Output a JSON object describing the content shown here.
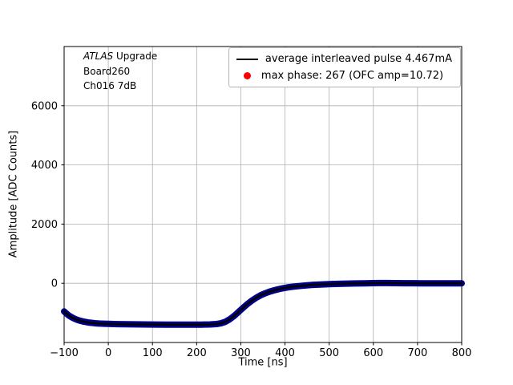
{
  "annotation": {
    "line1_italic": "ATLAS",
    "line1_rest": " Upgrade",
    "line2": "Board260",
    "line3": "Ch016 7dB"
  },
  "chart_data": {
    "type": "line",
    "title": "",
    "xlabel": "Time [ns]",
    "ylabel": "Amplitude [ADC Counts]",
    "xlim": [
      -100,
      800
    ],
    "ylim": [
      -2000,
      8000
    ],
    "xticks": [
      -100,
      0,
      100,
      200,
      300,
      400,
      500,
      600,
      700,
      800
    ],
    "xtick_labels": [
      "−100",
      "0",
      "100",
      "200",
      "300",
      "400",
      "500",
      "600",
      "700",
      "800"
    ],
    "yticks": [
      0,
      2000,
      4000,
      6000
    ],
    "ytick_labels": [
      "0",
      "2000",
      "4000",
      "6000"
    ],
    "grid": true,
    "grid_color": "#b0b0b0",
    "axes_edge_color": "#000000",
    "legend": {
      "position": "upper right",
      "entries": [
        {
          "label": "average interleaved pulse 4.467mA",
          "marker": "line",
          "color": "#000000"
        },
        {
          "label": "max phase: 267 (OFC amp=10.72)",
          "marker": "dot",
          "color": "#ff0000"
        }
      ]
    },
    "pulse_points": [
      [
        -100,
        -950
      ],
      [
        -95,
        -1020
      ],
      [
        -90,
        -1080
      ],
      [
        -85,
        -1130
      ],
      [
        -80,
        -1170
      ],
      [
        -75,
        -1205
      ],
      [
        -70,
        -1235
      ],
      [
        -65,
        -1260
      ],
      [
        -60,
        -1280
      ],
      [
        -55,
        -1298
      ],
      [
        -50,
        -1312
      ],
      [
        -45,
        -1324
      ],
      [
        -40,
        -1334
      ],
      [
        -35,
        -1342
      ],
      [
        -30,
        -1349
      ],
      [
        -25,
        -1355
      ],
      [
        -20,
        -1360
      ],
      [
        -10,
        -1367
      ],
      [
        0,
        -1372
      ],
      [
        20,
        -1379
      ],
      [
        40,
        -1384
      ],
      [
        60,
        -1388
      ],
      [
        80,
        -1391
      ],
      [
        100,
        -1393
      ],
      [
        130,
        -1395
      ],
      [
        160,
        -1396
      ],
      [
        190,
        -1396
      ],
      [
        210,
        -1395
      ],
      [
        230,
        -1390
      ],
      [
        245,
        -1378
      ],
      [
        255,
        -1352
      ],
      [
        265,
        -1300
      ],
      [
        275,
        -1215
      ],
      [
        285,
        -1100
      ],
      [
        295,
        -965
      ],
      [
        305,
        -830
      ],
      [
        315,
        -700
      ],
      [
        325,
        -585
      ],
      [
        335,
        -487
      ],
      [
        345,
        -405
      ],
      [
        355,
        -338
      ],
      [
        365,
        -283
      ],
      [
        375,
        -238
      ],
      [
        385,
        -200
      ],
      [
        395,
        -168
      ],
      [
        405,
        -142
      ],
      [
        420,
        -110
      ],
      [
        440,
        -80
      ],
      [
        460,
        -58
      ],
      [
        480,
        -42
      ],
      [
        500,
        -30
      ],
      [
        520,
        -20
      ],
      [
        540,
        -12
      ],
      [
        560,
        -6
      ],
      [
        580,
        0
      ],
      [
        600,
        6
      ],
      [
        615,
        9
      ],
      [
        630,
        8
      ],
      [
        650,
        5
      ],
      [
        670,
        3
      ],
      [
        690,
        2
      ],
      [
        710,
        1
      ],
      [
        730,
        0
      ],
      [
        760,
        0
      ],
      [
        800,
        0
      ]
    ],
    "series": [
      {
        "name": "interleaved-pulses-band",
        "color": "#00008b",
        "width": 8
      },
      {
        "name": "average-pulse-line",
        "color": "#000000",
        "width": 2.6
      }
    ]
  }
}
